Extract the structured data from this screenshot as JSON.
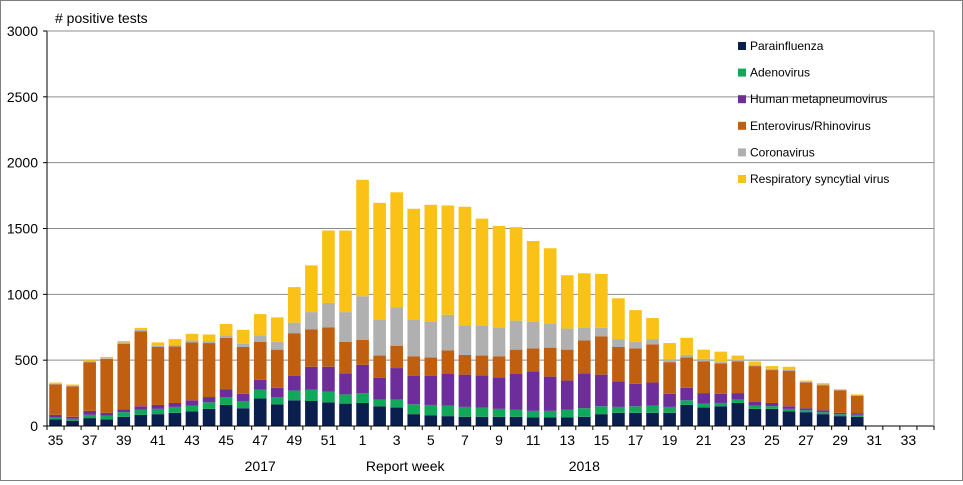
{
  "chart_data": {
    "type": "bar",
    "stacked": true,
    "title": "",
    "ylabel": "# positive tests",
    "xlabel": "Report  week",
    "year_labels": [
      {
        "text": "2017",
        "at_week_index": 12
      },
      {
        "text": "2018",
        "at_week_index": 31
      }
    ],
    "ylim": [
      0,
      3000
    ],
    "yticks": [
      0,
      500,
      1000,
      1500,
      2000,
      2500,
      3000
    ],
    "grid": true,
    "legend_position": "right",
    "categories": [
      "35",
      "36",
      "37",
      "38",
      "39",
      "40",
      "41",
      "42",
      "43",
      "44",
      "45",
      "46",
      "47",
      "48",
      "49",
      "50",
      "51",
      "52",
      "1",
      "2",
      "3",
      "4",
      "5",
      "6",
      "7",
      "8",
      "9",
      "10",
      "11",
      "12",
      "13",
      "14",
      "15",
      "16",
      "17",
      "18",
      "19",
      "20",
      "21",
      "22",
      "23",
      "24",
      "25",
      "26",
      "27",
      "28",
      "29",
      "30",
      "31",
      "32",
      "33",
      "34"
    ],
    "x_tick_labels": [
      "35",
      "",
      "37",
      "",
      "39",
      "",
      "41",
      "",
      "43",
      "",
      "45",
      "",
      "47",
      "",
      "49",
      "",
      "51",
      "",
      "1",
      "",
      "3",
      "",
      "5",
      "",
      "7",
      "",
      "9",
      "",
      "11",
      "",
      "13",
      "",
      "15",
      "",
      "17",
      "",
      "19",
      "",
      "21",
      "",
      "23",
      "",
      "25",
      "",
      "27",
      "",
      "29",
      "",
      "31",
      "",
      "33",
      ""
    ],
    "series": [
      {
        "name": "Parainfluenza",
        "color": "#0b1f4f",
        "values": [
          50,
          40,
          60,
          50,
          70,
          85,
          90,
          100,
          110,
          130,
          160,
          135,
          210,
          165,
          195,
          190,
          180,
          170,
          175,
          150,
          140,
          90,
          80,
          75,
          70,
          70,
          70,
          70,
          65,
          65,
          65,
          70,
          90,
          100,
          100,
          100,
          100,
          160,
          140,
          150,
          175,
          130,
          130,
          110,
          105,
          90,
          75,
          70,
          0,
          0,
          0,
          0
        ]
      },
      {
        "name": "Adenovirus",
        "color": "#11a85a",
        "values": [
          15,
          15,
          25,
          30,
          35,
          40,
          40,
          45,
          45,
          50,
          60,
          55,
          65,
          55,
          75,
          85,
          80,
          70,
          75,
          50,
          60,
          75,
          80,
          80,
          75,
          70,
          60,
          55,
          50,
          50,
          60,
          65,
          60,
          45,
          50,
          55,
          45,
          35,
          30,
          25,
          25,
          25,
          20,
          20,
          15,
          15,
          15,
          15,
          0,
          0,
          0,
          0
        ]
      },
      {
        "name": "Human metapneumovirus",
        "color": "#6d2e9c",
        "values": [
          20,
          15,
          30,
          20,
          20,
          25,
          30,
          30,
          40,
          40,
          60,
          55,
          75,
          70,
          110,
          175,
          190,
          160,
          215,
          165,
          240,
          215,
          220,
          240,
          245,
          245,
          240,
          270,
          300,
          260,
          220,
          265,
          240,
          195,
          170,
          175,
          100,
          95,
          80,
          70,
          50,
          30,
          25,
          20,
          15,
          15,
          10,
          10,
          0,
          0,
          0,
          0
        ]
      },
      {
        "name": "Enterovirus/Rhinovirus",
        "color": "#c05f10",
        "values": [
          230,
          230,
          370,
          410,
          500,
          570,
          440,
          430,
          440,
          410,
          390,
          355,
          290,
          290,
          325,
          285,
          300,
          240,
          190,
          170,
          170,
          150,
          140,
          180,
          150,
          150,
          160,
          185,
          175,
          220,
          235,
          250,
          290,
          260,
          270,
          290,
          240,
          230,
          240,
          230,
          240,
          270,
          250,
          270,
          195,
          190,
          170,
          135,
          0,
          0,
          0,
          0
        ]
      },
      {
        "name": "Coronavirus",
        "color": "#b0b0b0",
        "values": [
          5,
          5,
          5,
          5,
          10,
          10,
          10,
          10,
          15,
          15,
          20,
          25,
          50,
          60,
          80,
          130,
          185,
          225,
          330,
          270,
          290,
          275,
          270,
          270,
          225,
          230,
          220,
          220,
          200,
          180,
          160,
          100,
          65,
          60,
          50,
          40,
          20,
          20,
          20,
          10,
          10,
          10,
          10,
          10,
          5,
          5,
          5,
          5,
          0,
          0,
          0,
          0
        ]
      },
      {
        "name": "Respiratory syncytial virus",
        "color": "#fac216",
        "values": [
          10,
          10,
          10,
          10,
          10,
          15,
          25,
          45,
          50,
          50,
          85,
          105,
          160,
          185,
          270,
          355,
          550,
          620,
          885,
          890,
          875,
          845,
          890,
          830,
          900,
          810,
          770,
          710,
          615,
          575,
          405,
          410,
          410,
          310,
          240,
          160,
          125,
          130,
          70,
          80,
          35,
          25,
          20,
          20,
          10,
          10,
          5,
          5,
          0,
          0,
          0,
          0
        ]
      }
    ]
  }
}
